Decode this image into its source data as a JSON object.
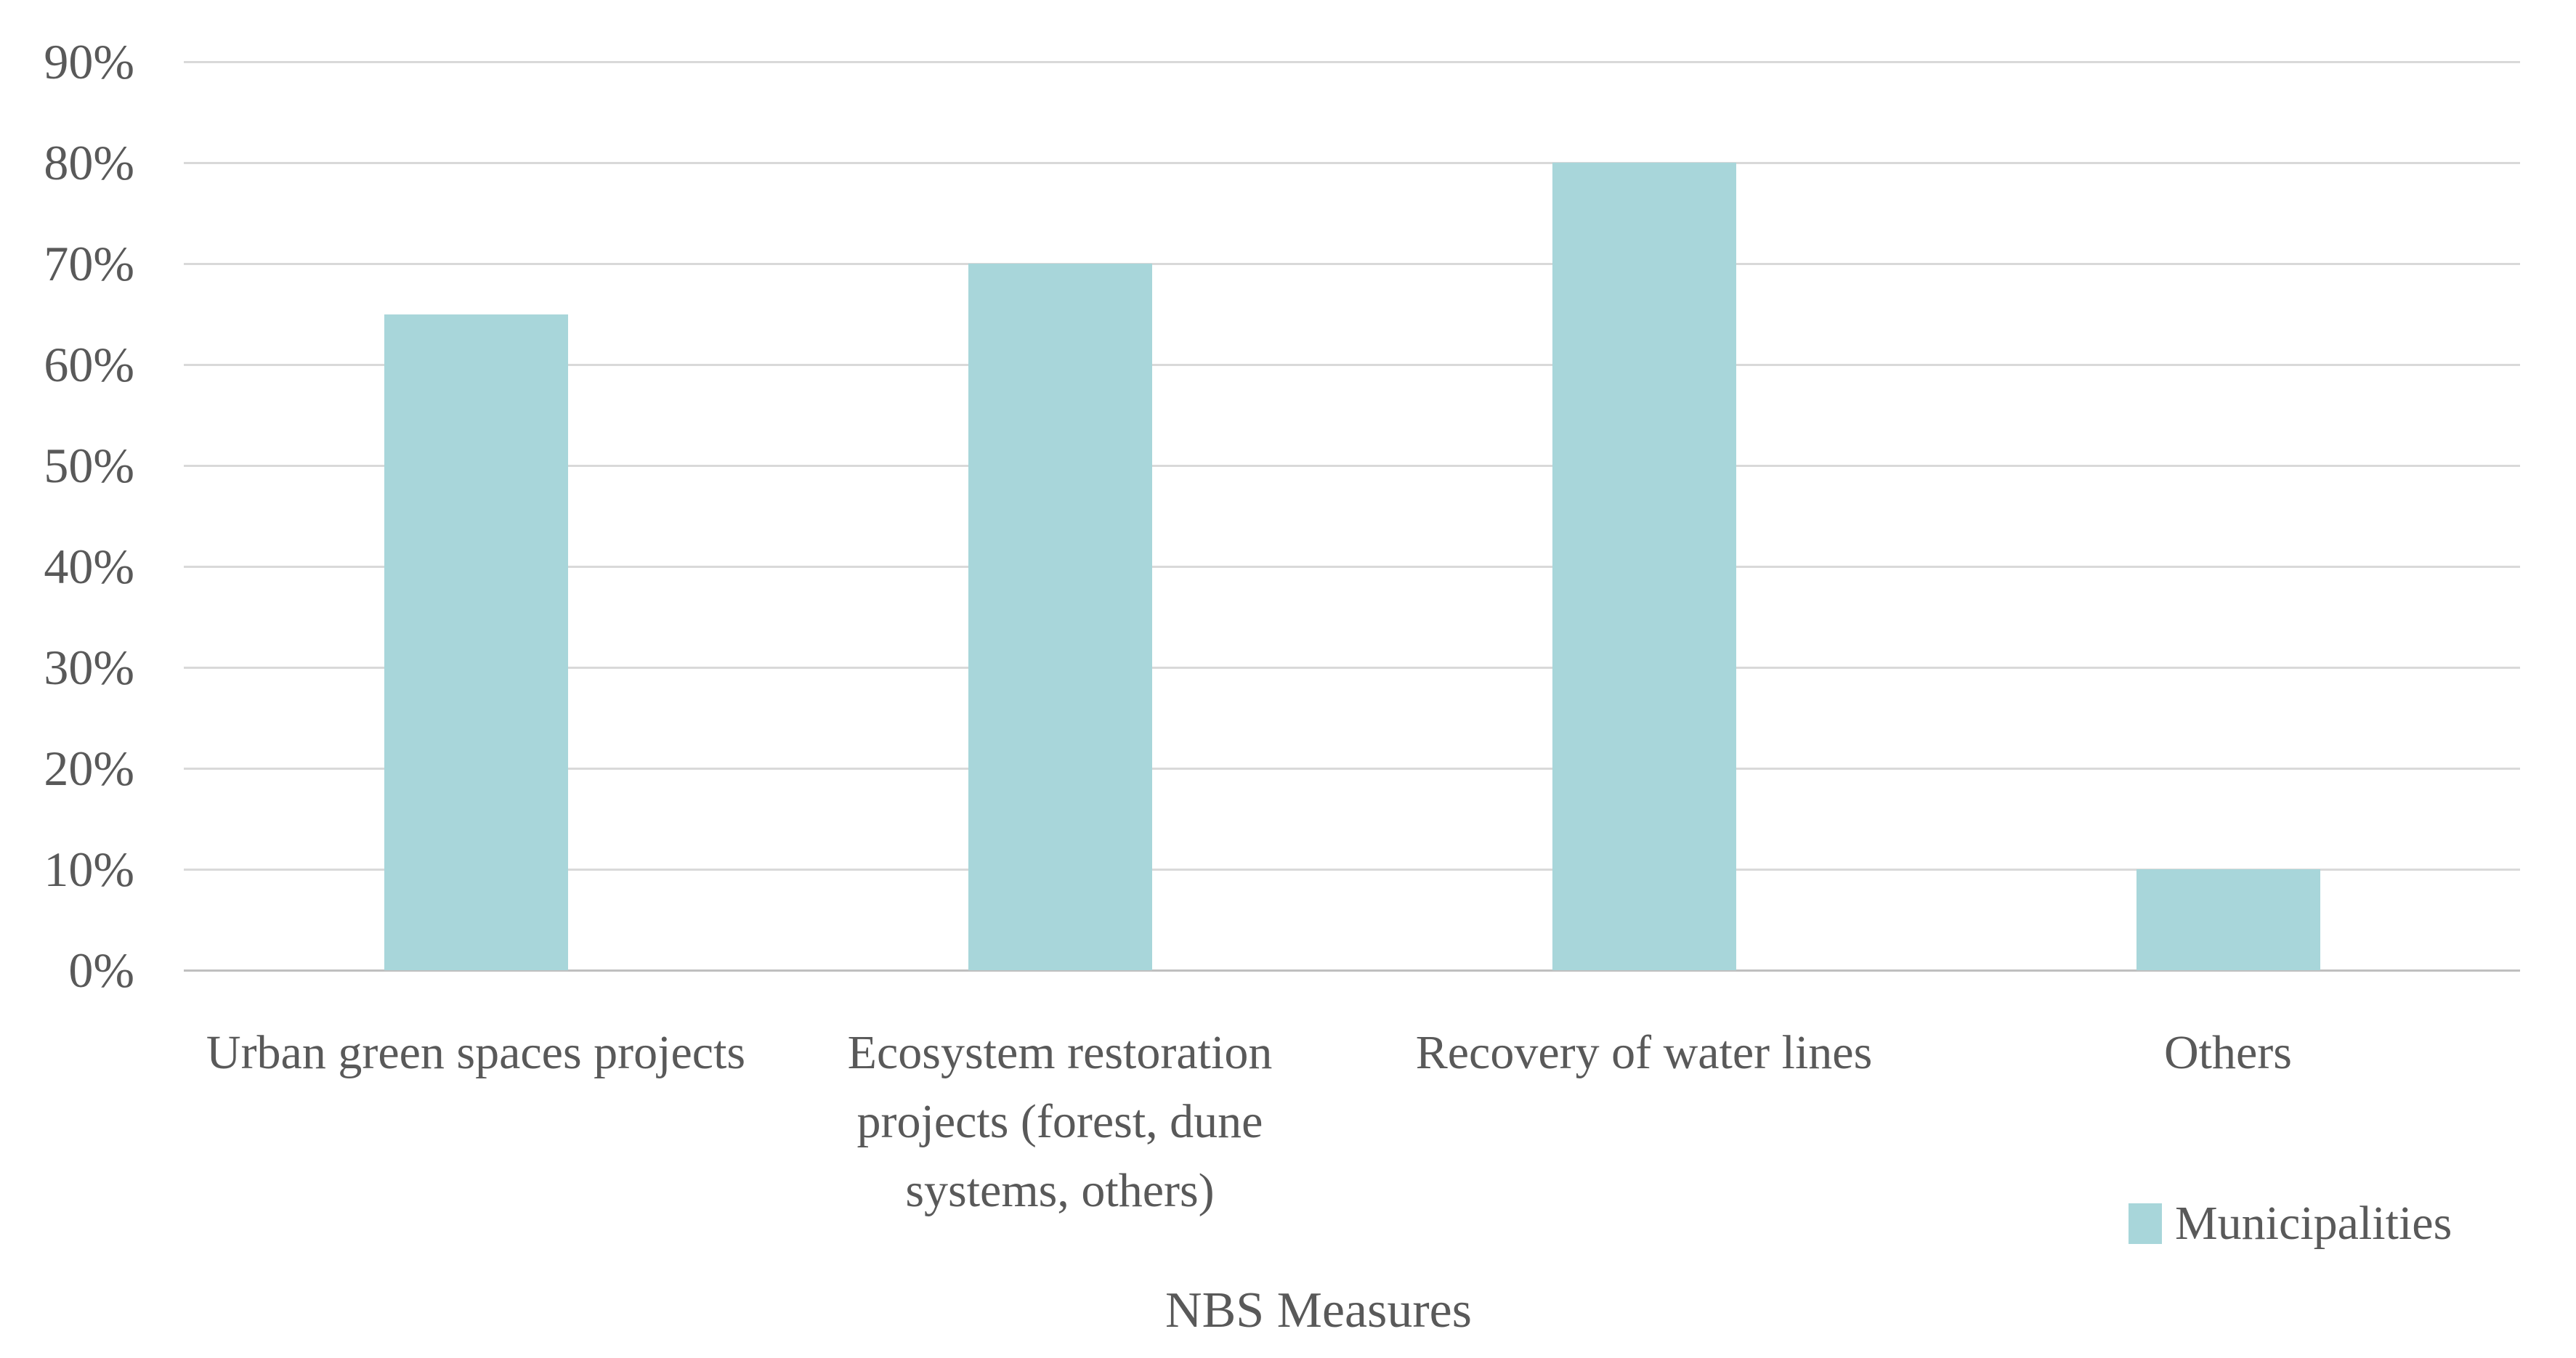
{
  "chart_data": {
    "type": "bar",
    "categories": [
      "Urban green spaces projects",
      "Ecosystem restoration projects (forest, dune systems, others)",
      "Recovery of water lines",
      "Others"
    ],
    "series": [
      {
        "name": "Municipalities",
        "values": [
          65,
          70,
          80,
          10
        ]
      }
    ],
    "title": "",
    "xlabel": "NBS Measures",
    "ylabel": "",
    "ylim": [
      0,
      90
    ],
    "ytick_step": 10,
    "ytick_suffix": "%",
    "grid": true,
    "legend_position": "bottom-right",
    "colors": {
      "bar_fill": "#a8d6da",
      "gridline": "#d9d9d9",
      "axis_line": "#bfbfbf",
      "text": "#595959"
    }
  },
  "legend": {
    "label": "Municipalities"
  },
  "x_axis_title": "NBS Measures"
}
